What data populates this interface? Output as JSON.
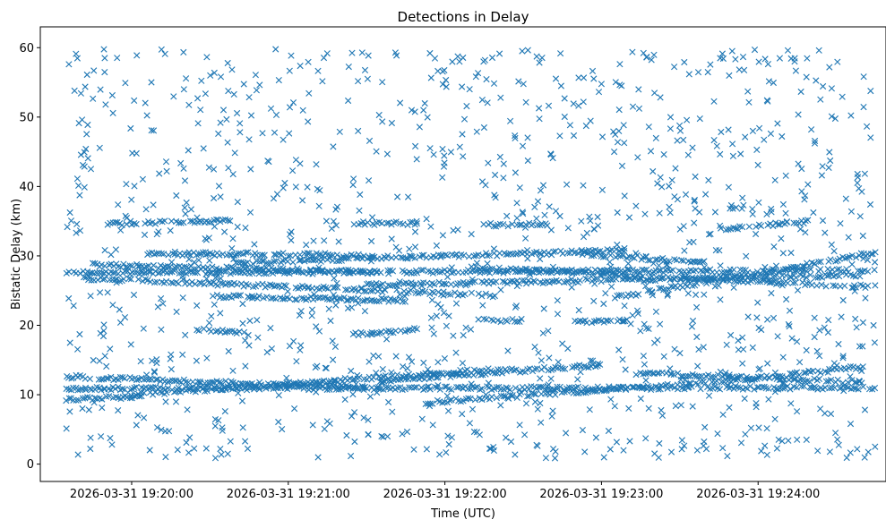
{
  "chart_data": {
    "type": "scatter",
    "title": "Detections in Delay",
    "xlabel": "Time (UTC)",
    "ylabel": "Bistatic Delay (km)",
    "marker": "x",
    "color": "#1f77b4",
    "grid": false,
    "legend": "none",
    "xlim": [
      "2026-03-31 19:19:25",
      "2026-03-31 19:24:49"
    ],
    "ylim": [
      -2.5,
      63
    ],
    "xticks": [
      "2026-03-31 19:20:00",
      "2026-03-31 19:21:00",
      "2026-03-31 19:22:00",
      "2026-03-31 19:23:00",
      "2026-03-31 19:24:00"
    ],
    "yticks": [
      0,
      10,
      20,
      30,
      40,
      50,
      60
    ],
    "tracks": [
      {
        "start": "2026-03-31 19:19:35",
        "end": "2026-03-31 19:24:45",
        "delay_start": 27.6,
        "delay_end": 27.9
      },
      {
        "start": "2026-03-31 19:19:45",
        "end": "2026-03-31 19:21:40",
        "delay_start": 28.7,
        "delay_end": 27.6
      },
      {
        "start": "2026-03-31 19:19:40",
        "end": "2026-03-31 19:22:20",
        "delay_start": 26.8,
        "delay_end": 24.3
      },
      {
        "start": "2026-03-31 19:21:30",
        "end": "2026-03-31 19:24:40",
        "delay_start": 25.8,
        "delay_end": 27.2
      },
      {
        "start": "2026-03-31 19:20:40",
        "end": "2026-03-31 19:23:10",
        "delay_start": 29.0,
        "delay_end": 30.8
      },
      {
        "start": "2026-03-31 19:22:10",
        "end": "2026-03-31 19:24:45",
        "delay_start": 28.3,
        "delay_end": 25.5
      },
      {
        "start": "2026-03-31 19:20:30",
        "end": "2026-03-31 19:21:45",
        "delay_start": 24.2,
        "delay_end": 23.6
      },
      {
        "start": "2026-03-31 19:23:05",
        "end": "2026-03-31 19:24:45",
        "delay_start": 24.0,
        "delay_end": 30.4
      },
      {
        "start": "2026-03-31 19:20:05",
        "end": "2026-03-31 19:21:30",
        "delay_start": 30.3,
        "delay_end": 30.2
      },
      {
        "start": "2026-03-31 19:22:50",
        "end": "2026-03-31 19:23:40",
        "delay_start": 30.4,
        "delay_end": 29.0
      },
      {
        "start": "2026-03-31 19:19:50",
        "end": "2026-03-31 19:20:40",
        "delay_start": 34.6,
        "delay_end": 35.2
      },
      {
        "start": "2026-03-31 19:21:25",
        "end": "2026-03-31 19:21:50",
        "delay_start": 34.7,
        "delay_end": 34.7
      },
      {
        "start": "2026-03-31 19:22:15",
        "end": "2026-03-31 19:22:40",
        "delay_start": 34.5,
        "delay_end": 34.5
      },
      {
        "start": "2026-03-31 19:23:45",
        "end": "2026-03-31 19:24:20",
        "delay_start": 33.8,
        "delay_end": 35.0
      },
      {
        "start": "2026-03-31 19:20:25",
        "end": "2026-03-31 19:20:45",
        "delay_start": 19.5,
        "delay_end": 18.8
      },
      {
        "start": "2026-03-31 19:21:25",
        "end": "2026-03-31 19:21:50",
        "delay_start": 18.7,
        "delay_end": 19.4
      },
      {
        "start": "2026-03-31 19:22:50",
        "end": "2026-03-31 19:23:10",
        "delay_start": 20.6,
        "delay_end": 20.6
      },
      {
        "start": "2026-03-31 19:22:15",
        "end": "2026-03-31 19:22:30",
        "delay_start": 20.7,
        "delay_end": 20.7
      },
      {
        "start": "2026-03-31 19:19:35",
        "end": "2026-03-31 19:24:45",
        "delay_start": 10.9,
        "delay_end": 11.0
      },
      {
        "start": "2026-03-31 19:19:35",
        "end": "2026-03-31 19:21:30",
        "delay_start": 12.6,
        "delay_end": 11.0
      },
      {
        "start": "2026-03-31 19:20:00",
        "end": "2026-03-31 19:22:25",
        "delay_start": 10.0,
        "delay_end": 13.8
      },
      {
        "start": "2026-03-31 19:21:35",
        "end": "2026-03-31 19:23:00",
        "delay_start": 12.0,
        "delay_end": 14.3
      },
      {
        "start": "2026-03-31 19:21:50",
        "end": "2026-03-31 19:24:00",
        "delay_start": 8.8,
        "delay_end": 12.3
      },
      {
        "start": "2026-03-31 19:23:15",
        "end": "2026-03-31 19:24:40",
        "delay_start": 13.1,
        "delay_end": 11.8
      },
      {
        "start": "2026-03-31 19:23:55",
        "end": "2026-03-31 19:24:40",
        "delay_start": 12.3,
        "delay_end": 14.0
      },
      {
        "start": "2026-03-31 19:19:35",
        "end": "2026-03-31 19:20:05",
        "delay_start": 9.3,
        "delay_end": 9.8
      }
    ],
    "noise": {
      "start": "2026-03-31 19:19:35",
      "end": "2026-03-31 19:24:45",
      "delay_min": 0.8,
      "delay_max": 59.8
    }
  }
}
